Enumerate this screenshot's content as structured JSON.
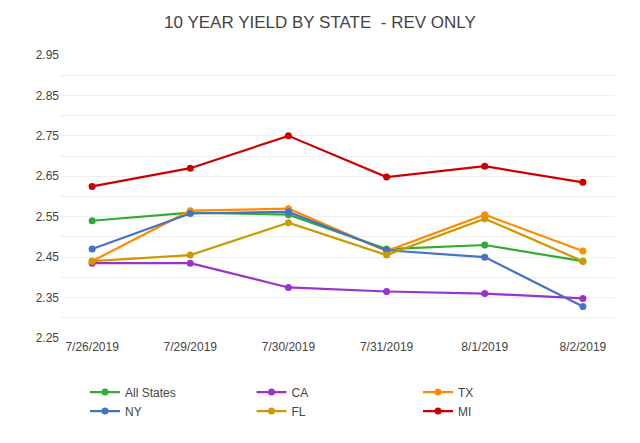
{
  "chart_data": {
    "type": "line",
    "title": "10 YEAR YIELD BY STATE  - REV ONLY",
    "categories": [
      "7/26/2019",
      "7/29/2019",
      "7/30/2019",
      "7/31/2019",
      "8/1/2019",
      "8/2/2019"
    ],
    "series": [
      {
        "name": "All States",
        "color": "#33AA33",
        "marker": "circle",
        "values": [
          2.54,
          2.56,
          2.555,
          2.47,
          2.48,
          2.44
        ]
      },
      {
        "name": "CA",
        "color": "#9933CC",
        "marker": "circle",
        "values": [
          2.435,
          2.435,
          2.375,
          2.365,
          2.36,
          2.348
        ]
      },
      {
        "name": "TX",
        "color": "#FF8C00",
        "marker": "circle",
        "values": [
          2.44,
          2.565,
          2.57,
          2.465,
          2.555,
          2.465
        ]
      },
      {
        "name": "NY",
        "color": "#4472C4",
        "marker": "circle",
        "values": [
          2.47,
          2.558,
          2.562,
          2.467,
          2.45,
          2.328
        ]
      },
      {
        "name": "FL",
        "color": "#CC9900",
        "marker": "circle",
        "values": [
          2.44,
          2.455,
          2.535,
          2.455,
          2.545,
          2.44
        ]
      },
      {
        "name": "MI",
        "color": "#CC0000",
        "marker": "circle",
        "values": [
          2.625,
          2.67,
          2.75,
          2.648,
          2.675,
          2.635
        ]
      }
    ],
    "ylim": [
      2.25,
      2.95
    ],
    "yticks": [
      2.25,
      {
        "value": 2.3,
        "label": null
      },
      2.35,
      {
        "value": 2.4,
        "label": null
      },
      2.45,
      {
        "value": 2.5,
        "label": null
      },
      2.55,
      {
        "value": 2.6,
        "label": null
      },
      2.65,
      {
        "value": 2.7,
        "label": null
      },
      2.75,
      {
        "value": 2.8,
        "label": null
      },
      2.85,
      {
        "value": 2.9,
        "label": null
      },
      2.95
    ],
    "grid": true,
    "legend": "bottom"
  }
}
